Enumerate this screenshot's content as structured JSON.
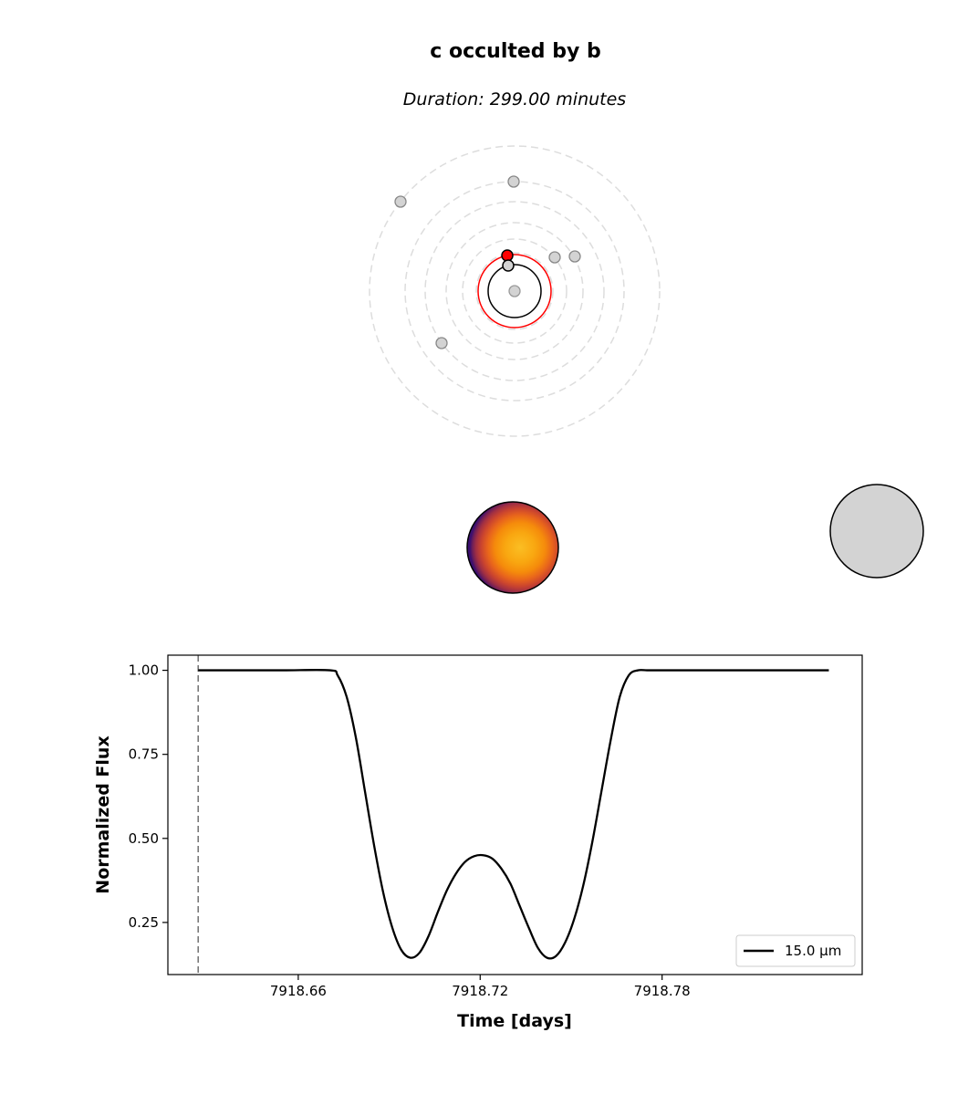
{
  "title": "c occulted by b",
  "subtitle": "Duration: 299.00 minutes",
  "orbit_view": {
    "orbit_style": "dashed light gray",
    "highlight_color": "#ff0000",
    "occultor_color": "#000000",
    "planet_fill": "#d3d3d3"
  },
  "disks": {
    "occulted_colormap": "inferno",
    "occultor_fill": "#d3d3d3"
  },
  "chart_data": {
    "type": "line",
    "xlabel": "Time [days]",
    "ylabel": "Normalized Flux",
    "xlim": [
      7918.617,
      7918.846
    ],
    "ylim": [
      0.095,
      1.045
    ],
    "xticks": [
      7918.66,
      7918.72,
      7918.78
    ],
    "xtick_labels": [
      "7918.66",
      "7918.72",
      "7918.78"
    ],
    "yticks": [
      0.25,
      0.5,
      0.75,
      1.0
    ],
    "ytick_labels": [
      "0.25",
      "0.50",
      "0.75",
      "1.00"
    ],
    "marker_line_x": 7918.627,
    "grid": false,
    "legend_position": "lower-right",
    "series": [
      {
        "name": "15.0 μm",
        "color": "#000000",
        "x": [
          7918.627,
          7918.64,
          7918.655,
          7918.6705,
          7918.673,
          7918.676,
          7918.679,
          7918.682,
          7918.685,
          7918.688,
          7918.691,
          7918.694,
          7918.697,
          7918.7,
          7918.703,
          7918.706,
          7918.709,
          7918.712,
          7918.715,
          7918.718,
          7918.721,
          7918.724,
          7918.727,
          7918.73,
          7918.733,
          7918.736,
          7918.739,
          7918.742,
          7918.745,
          7918.748,
          7918.751,
          7918.754,
          7918.757,
          7918.76,
          7918.763,
          7918.766,
          7918.769,
          7918.772,
          7918.775,
          7918.778,
          7918.7815,
          7918.79,
          7918.81,
          7918.835
        ],
        "y": [
          1.0,
          1.0,
          1.0,
          1.0,
          0.985,
          0.92,
          0.8,
          0.64,
          0.48,
          0.34,
          0.235,
          0.168,
          0.145,
          0.16,
          0.21,
          0.28,
          0.345,
          0.395,
          0.43,
          0.447,
          0.45,
          0.44,
          0.41,
          0.365,
          0.3,
          0.235,
          0.175,
          0.145,
          0.15,
          0.19,
          0.26,
          0.36,
          0.49,
          0.64,
          0.79,
          0.92,
          0.985,
          1.0,
          1.0,
          1.0,
          1.0,
          1.0,
          1.0,
          1.0
        ]
      }
    ]
  }
}
